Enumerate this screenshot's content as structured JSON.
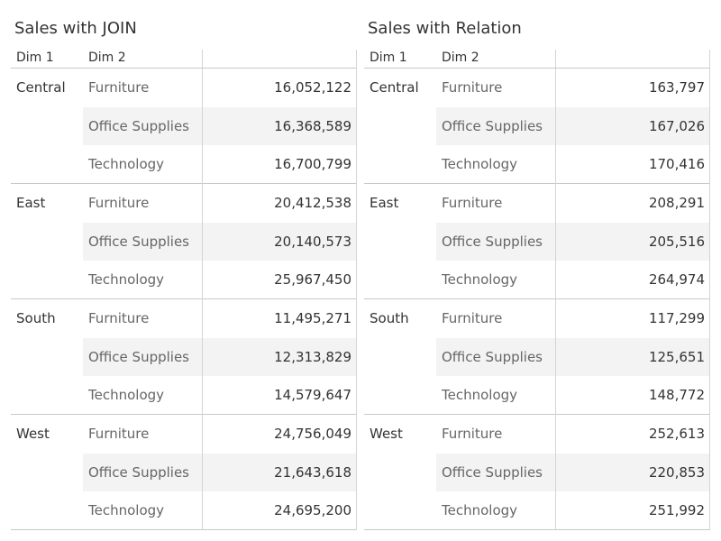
{
  "chart_data": [
    {
      "type": "table",
      "title": "Sales with JOIN",
      "columns": [
        "Dim 1",
        "Dim 2",
        ""
      ],
      "groups": [
        {
          "dim1": "Central",
          "rows": [
            {
              "dim2": "Furniture",
              "value": "16,052,122"
            },
            {
              "dim2": "Office Supplies",
              "value": "16,368,589"
            },
            {
              "dim2": "Technology",
              "value": "16,700,799"
            }
          ]
        },
        {
          "dim1": "East",
          "rows": [
            {
              "dim2": "Furniture",
              "value": "20,412,538"
            },
            {
              "dim2": "Office Supplies",
              "value": "20,140,573"
            },
            {
              "dim2": "Technology",
              "value": "25,967,450"
            }
          ]
        },
        {
          "dim1": "South",
          "rows": [
            {
              "dim2": "Furniture",
              "value": "11,495,271"
            },
            {
              "dim2": "Office Supplies",
              "value": "12,313,829"
            },
            {
              "dim2": "Technology",
              "value": "14,579,647"
            }
          ]
        },
        {
          "dim1": "West",
          "rows": [
            {
              "dim2": "Furniture",
              "value": "24,756,049"
            },
            {
              "dim2": "Office Supplies",
              "value": "21,643,618"
            },
            {
              "dim2": "Technology",
              "value": "24,695,200"
            }
          ]
        }
      ]
    },
    {
      "type": "table",
      "title": "Sales with Relation",
      "columns": [
        "Dim 1",
        "Dim 2",
        ""
      ],
      "groups": [
        {
          "dim1": "Central",
          "rows": [
            {
              "dim2": "Furniture",
              "value": "163,797"
            },
            {
              "dim2": "Office Supplies",
              "value": "167,026"
            },
            {
              "dim2": "Technology",
              "value": "170,416"
            }
          ]
        },
        {
          "dim1": "East",
          "rows": [
            {
              "dim2": "Furniture",
              "value": "208,291"
            },
            {
              "dim2": "Office Supplies",
              "value": "205,516"
            },
            {
              "dim2": "Technology",
              "value": "264,974"
            }
          ]
        },
        {
          "dim1": "South",
          "rows": [
            {
              "dim2": "Furniture",
              "value": "117,299"
            },
            {
              "dim2": "Office Supplies",
              "value": "125,651"
            },
            {
              "dim2": "Technology",
              "value": "148,772"
            }
          ]
        },
        {
          "dim1": "West",
          "rows": [
            {
              "dim2": "Furniture",
              "value": "252,613"
            },
            {
              "dim2": "Office Supplies",
              "value": "220,853"
            },
            {
              "dim2": "Technology",
              "value": "251,992"
            }
          ]
        }
      ]
    }
  ]
}
